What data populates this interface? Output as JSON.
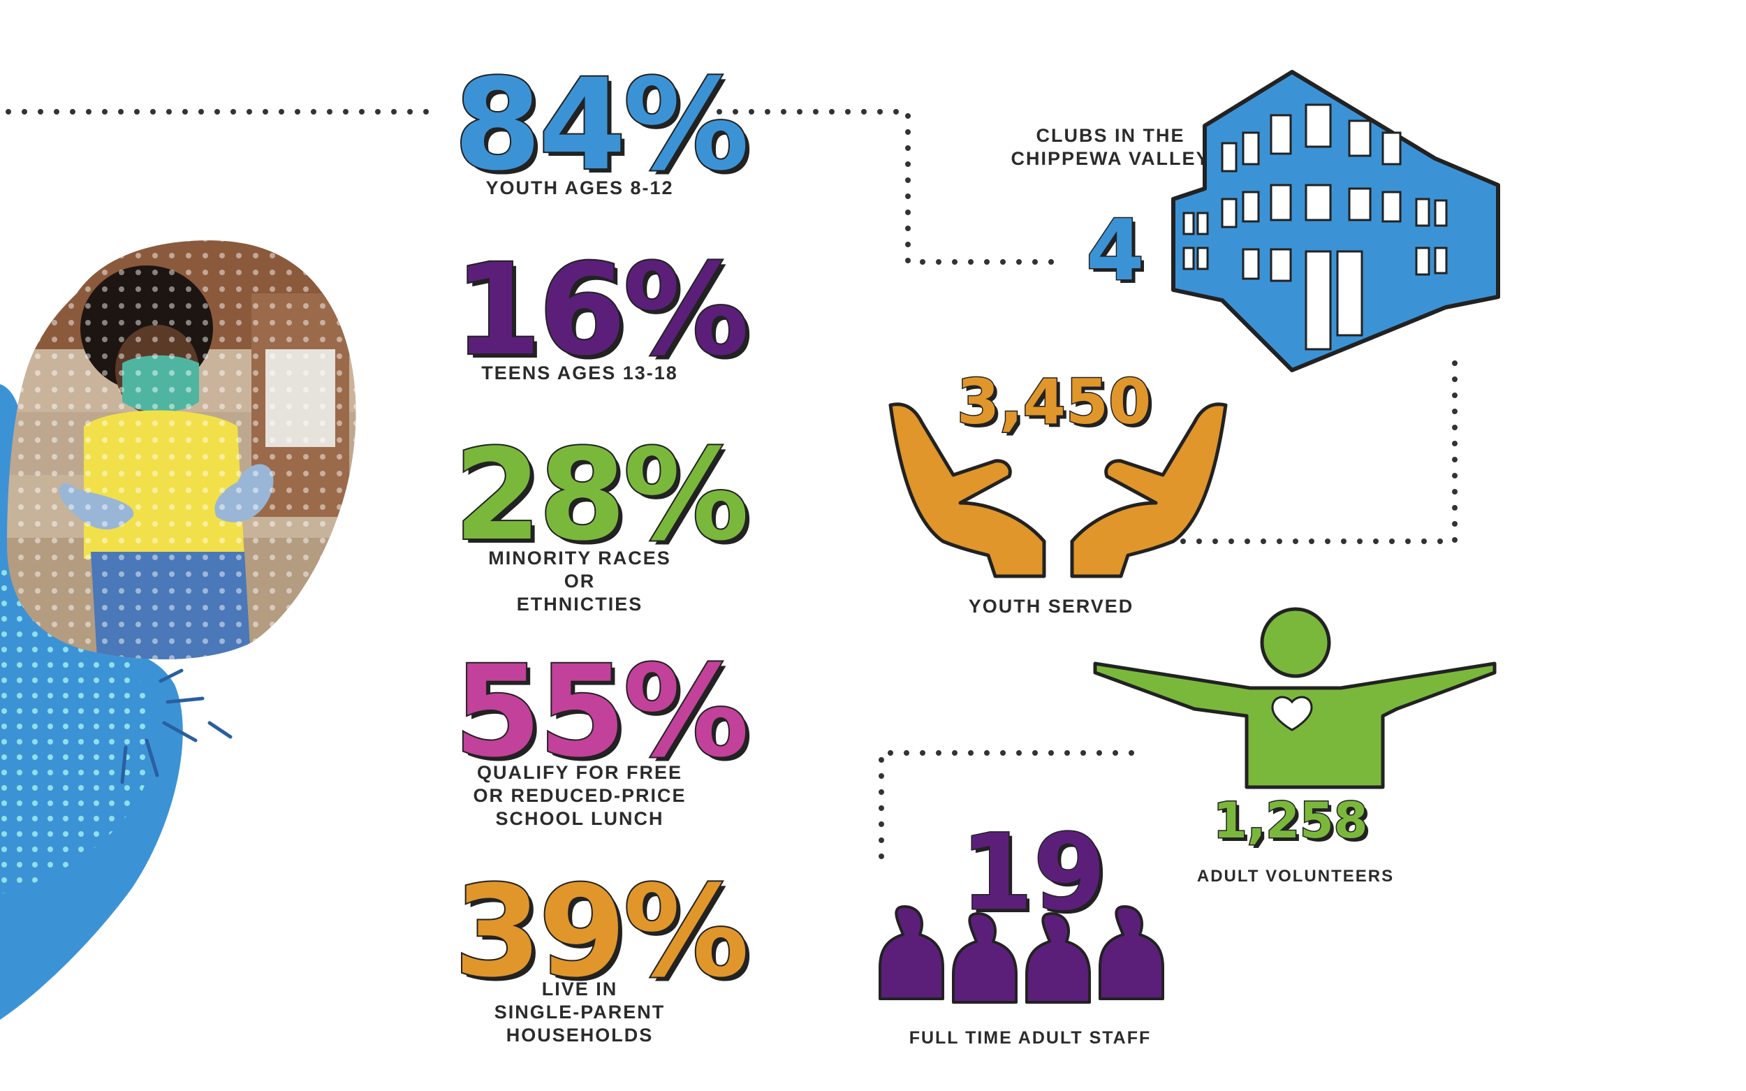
{
  "colors": {
    "blue": "#3b93d6",
    "purple": "#5b1f7a",
    "green": "#7ab83c",
    "magenta": "#c2419a",
    "orange": "#e0962a",
    "dark": "#222222"
  },
  "stats": [
    {
      "value": "84%",
      "label": [
        "YOUTH AGES 8-12"
      ],
      "color": "#3b93d6"
    },
    {
      "value": "16%",
      "label": [
        "TEENS AGES 13-18"
      ],
      "color": "#5b1f7a"
    },
    {
      "value": "28%",
      "label": [
        "MINORITY RACES",
        "OR",
        "ETHNICTIES"
      ],
      "color": "#7ab83c"
    },
    {
      "value": "55%",
      "label": [
        "QUALIFY FOR FREE",
        "OR REDUCED-PRICE",
        "SCHOOL LUNCH"
      ],
      "color": "#c2419a"
    },
    {
      "value": "39%",
      "label": [
        "LIVE IN",
        "SINGLE-PARENT",
        "HOUSEHOLDS"
      ],
      "color": "#e0962a"
    }
  ],
  "clubs": {
    "value": "4",
    "label": [
      "CLUBS IN THE",
      "CHIPPEWA VALLEY"
    ],
    "icon": "building-icon"
  },
  "youth_served": {
    "value": "3,450",
    "label": "YOUTH SERVED",
    "icon": "hands-icon"
  },
  "volunteers": {
    "value": "1,258",
    "label": "ADULT VOLUNTEERS",
    "icon": "person-heart-icon"
  },
  "staff": {
    "value": "19",
    "label": "FULL TIME ADULT STAFF",
    "icon": "people-group-icon"
  },
  "photo": {
    "subject": "child-wearing-mask-photo"
  }
}
